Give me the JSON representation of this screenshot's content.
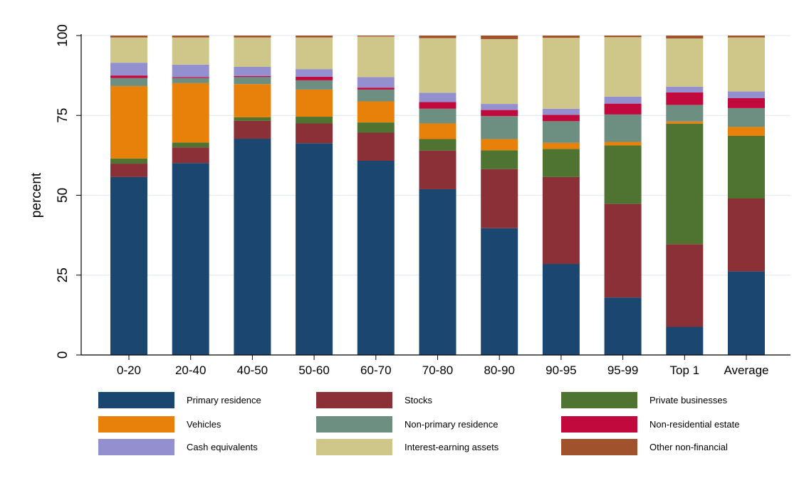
{
  "chart_data": {
    "type": "bar",
    "stacked": true,
    "title": "",
    "xlabel": "",
    "ylabel": "percent",
    "ylim": [
      0,
      100
    ],
    "yticks": [
      0,
      25,
      50,
      75,
      100
    ],
    "grid": true,
    "legend_position": "bottom",
    "categories": [
      "0-20",
      "20-40",
      "40-50",
      "50-60",
      "60-70",
      "70-80",
      "80-90",
      "90-95",
      "95-99",
      "Top 1",
      "Average"
    ],
    "series": [
      {
        "name": "Primary residence",
        "color": "#1a4670",
        "values": [
          55.7,
          60.1,
          67.7,
          66.3,
          60.8,
          51.9,
          39.7,
          28.5,
          18.0,
          8.8,
          26.2
        ]
      },
      {
        "name": "Stocks",
        "color": "#8c3038",
        "values": [
          4.2,
          4.9,
          5.6,
          6.2,
          8.8,
          12.1,
          18.5,
          27.2,
          29.3,
          25.9,
          22.8
        ]
      },
      {
        "name": "Private businesses",
        "color": "#4f7330",
        "values": [
          1.6,
          1.5,
          1.1,
          2.1,
          3.2,
          3.6,
          5.9,
          8.8,
          18.3,
          37.7,
          19.6
        ]
      },
      {
        "name": "Vehicles",
        "color": "#e8810a",
        "values": [
          22.7,
          18.6,
          10.4,
          8.5,
          6.6,
          4.9,
          3.5,
          1.9,
          1.1,
          0.7,
          2.8
        ]
      },
      {
        "name": "Non-primary residence",
        "color": "#6c8f82",
        "values": [
          2.5,
          1.6,
          2.2,
          2.9,
          3.7,
          4.6,
          7.2,
          6.8,
          8.6,
          5.2,
          5.9
        ]
      },
      {
        "name": "Non-residential estate",
        "color": "#c2093e",
        "values": [
          0.8,
          0.3,
          0.3,
          1.1,
          0.6,
          2.1,
          1.9,
          2.0,
          3.4,
          3.9,
          3.1
        ]
      },
      {
        "name": "Cash equivalents",
        "color": "#948fcf",
        "values": [
          4.0,
          3.9,
          2.9,
          2.4,
          3.3,
          2.9,
          1.9,
          1.9,
          2.2,
          1.8,
          2.1
        ]
      },
      {
        "name": "Interest-earning assets",
        "color": "#cfc78a",
        "values": [
          7.9,
          8.5,
          9.2,
          9.9,
          12.7,
          17.1,
          20.3,
          22.2,
          18.6,
          15.1,
          16.9
        ]
      },
      {
        "name": "Other non-financial",
        "color": "#a0522d",
        "values": [
          0.6,
          0.6,
          0.6,
          0.6,
          0.3,
          0.8,
          1.1,
          0.7,
          0.5,
          0.9,
          0.6
        ]
      }
    ]
  }
}
